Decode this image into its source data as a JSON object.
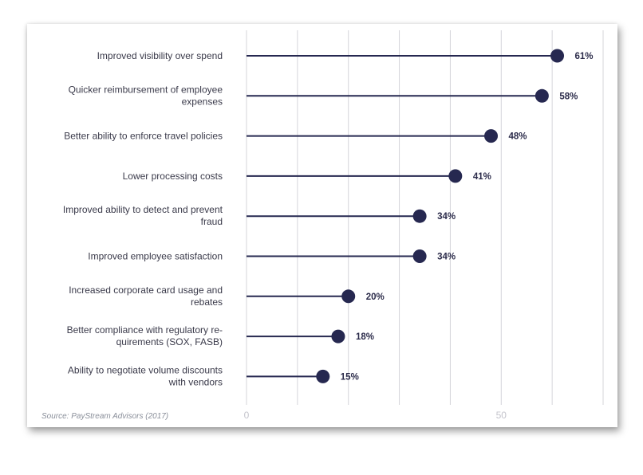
{
  "chart_data": {
    "type": "lollipop",
    "orientation": "horizontal",
    "categories": [
      [
        "Improved visibility over spend"
      ],
      [
        "Quicker reimbursement of employee",
        "expenses"
      ],
      [
        "Better ability to enforce travel policies"
      ],
      [
        "Lower processing costs"
      ],
      [
        "Improved ability to detect and prevent",
        "fraud"
      ],
      [
        "Improved employee satisfaction"
      ],
      [
        "Increased corporate card usage and",
        "rebates"
      ],
      [
        "Better compliance with regulatory re-",
        "quirements (SOX, FASB)"
      ],
      [
        "Ability to negotiate volume discounts",
        "with vendors"
      ]
    ],
    "values": [
      61,
      58,
      48,
      41,
      34,
      34,
      20,
      18,
      15
    ],
    "value_labels": [
      "61%",
      "58%",
      "48%",
      "41%",
      "34%",
      "34%",
      "20%",
      "18%",
      "15%"
    ],
    "xlim": [
      0,
      70
    ],
    "gridlines": [
      0,
      10,
      20,
      30,
      40,
      50,
      60,
      70
    ],
    "xticks": [
      "0",
      "50"
    ],
    "xtick_values": [
      0,
      50
    ],
    "grid": true,
    "color": "#262850",
    "grid_color": "#d4d4da",
    "source": "Source: PayStream Advisors (2017)"
  }
}
